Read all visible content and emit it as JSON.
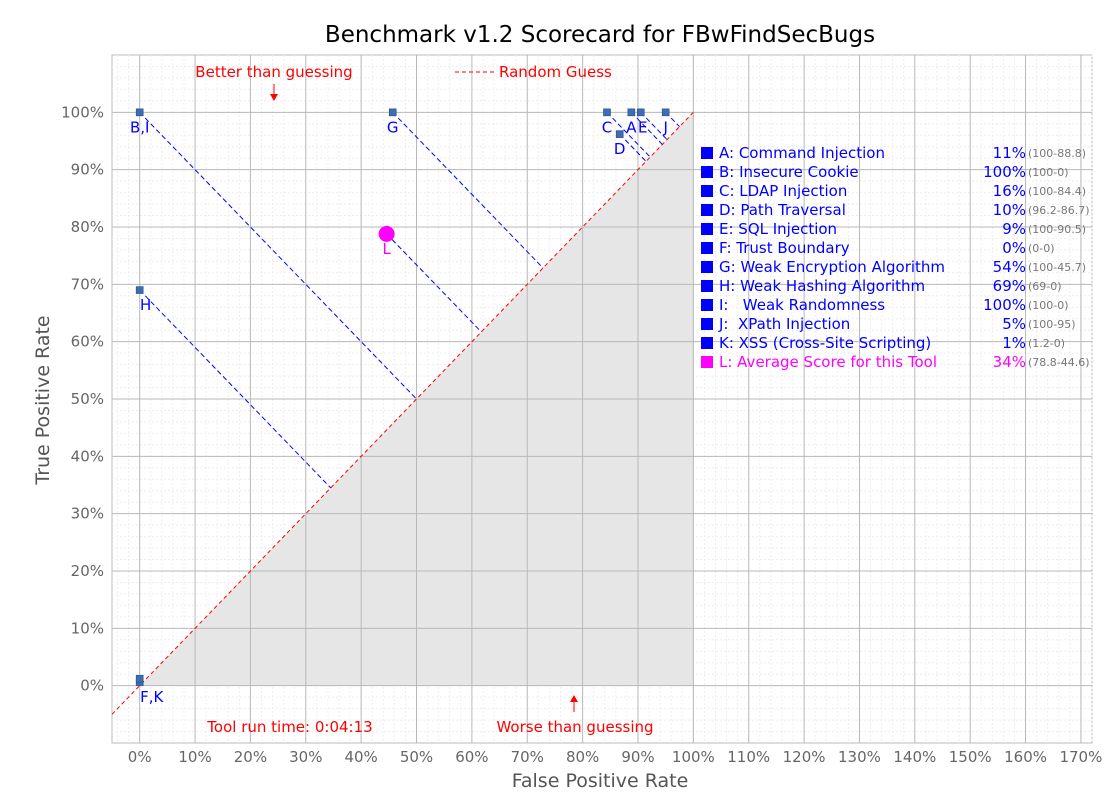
{
  "chart_data": {
    "type": "scatter",
    "title": "Benchmark v1.2 Scorecard for FBwFindSecBugs",
    "xlabel": "False Positive Rate",
    "ylabel": "True Positive Rate",
    "xlim": [
      -5,
      172
    ],
    "ylim": [
      -10,
      110
    ],
    "x_ticks": [
      0,
      10,
      20,
      30,
      40,
      50,
      60,
      70,
      80,
      90,
      100,
      110,
      120,
      130,
      140,
      150,
      160,
      170
    ],
    "y_ticks": [
      0,
      10,
      20,
      30,
      40,
      50,
      60,
      70,
      80,
      90,
      100
    ],
    "tick_suffix": "%",
    "grid": true,
    "shaded_region": "worse than guessing (below diagonal)",
    "annotations": {
      "better": "Better than guessing",
      "worse": "Worse than guessing",
      "random_guess": "Random Guess",
      "run_time": "Tool run time: 0:04:13"
    },
    "colors": {
      "series": "#0000ff",
      "average": "#ff00ff",
      "marker": "#3d6db5",
      "diagonal": "#ff0000"
    },
    "points": [
      {
        "label": "A",
        "x": 88.8,
        "y": 100,
        "dx": 0,
        "dy": 20
      },
      {
        "label": "B,I",
        "x": 0,
        "y": 100,
        "dx": 0,
        "dy": 20
      },
      {
        "label": "C",
        "x": 84.4,
        "y": 100,
        "dx": 0,
        "dy": 20
      },
      {
        "label": "D",
        "x": 86.7,
        "y": 96.2,
        "dx": 0,
        "dy": 20
      },
      {
        "label": "E",
        "x": 90.5,
        "y": 100,
        "dx": 2,
        "dy": 20
      },
      {
        "label": "F,K",
        "x": 0,
        "y": 0.6,
        "dx": 12,
        "dy": 20
      },
      {
        "label": "G",
        "x": 45.7,
        "y": 100,
        "dx": 0,
        "dy": 20
      },
      {
        "label": "H",
        "x": 0,
        "y": 69,
        "dx": 6,
        "dy": 20
      },
      {
        "label": "J",
        "x": 95,
        "y": 100,
        "dx": 0,
        "dy": 20
      },
      {
        "label": "K",
        "x": 0,
        "y": 1.2,
        "dx": 0,
        "dy": 0
      }
    ],
    "average_point": {
      "label": "L",
      "x": 44.6,
      "y": 78.8,
      "dx": 0,
      "dy": 20
    },
    "legend_position": "right",
    "legend": [
      {
        "key": "A",
        "name": "A: Command Injection",
        "score": "11%",
        "range": "(100-88.8)"
      },
      {
        "key": "B",
        "name": "B: Insecure Cookie",
        "score": "100%",
        "range": "(100-0)"
      },
      {
        "key": "C",
        "name": "C: LDAP Injection",
        "score": "16%",
        "range": "(100-84.4)"
      },
      {
        "key": "D",
        "name": "D: Path Traversal",
        "score": "10%",
        "range": "(96.2-86.7)"
      },
      {
        "key": "E",
        "name": "E: SQL Injection",
        "score": "9%",
        "range": "(100-90.5)"
      },
      {
        "key": "F",
        "name": "F: Trust Boundary",
        "score": "0%",
        "range": "(0-0)"
      },
      {
        "key": "G",
        "name": "G: Weak Encryption Algorithm",
        "score": "54%",
        "range": "(100-45.7)"
      },
      {
        "key": "H",
        "name": "H: Weak Hashing Algorithm",
        "score": "69%",
        "range": "(69-0)"
      },
      {
        "key": "I",
        "name": "I:   Weak Randomness",
        "score": "100%",
        "range": "(100-0)"
      },
      {
        "key": "J",
        "name": "J:  XPath Injection",
        "score": "5%",
        "range": "(100-95)"
      },
      {
        "key": "K",
        "name": "K: XSS (Cross-Site Scripting)",
        "score": "1%",
        "range": "(1.2-0)"
      },
      {
        "key": "L",
        "name": "L: Average Score for this Tool",
        "score": "34%",
        "range": "(78.8-44.6)",
        "average": true
      }
    ]
  }
}
